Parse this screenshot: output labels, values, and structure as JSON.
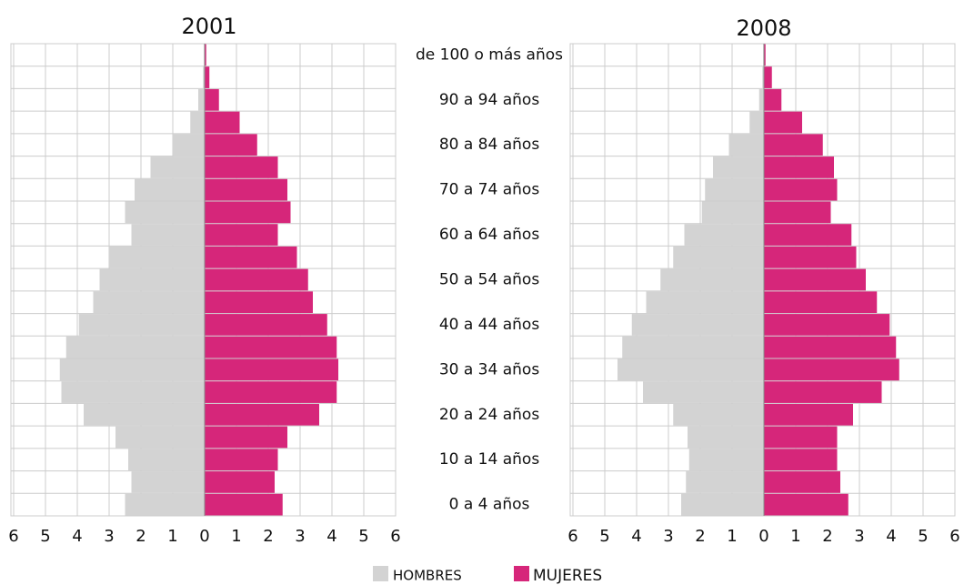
{
  "chart_data": [
    {
      "type": "pyramid",
      "title": "2001",
      "categories": [
        "0 a 4 años",
        null,
        "10 a 14 años",
        null,
        "20 a 24 años",
        null,
        "30 a 34 años",
        null,
        "40 a 44 años",
        null,
        "50 a 54 años",
        null,
        "60 a 64 años",
        null,
        "70 a 74 años",
        null,
        "80 a 84 años",
        null,
        "90 a 94 años",
        null,
        "de 100 o más años"
      ],
      "series": [
        {
          "name": "HOMBRES",
          "color": "#d3d3d3",
          "values": [
            2.5,
            2.3,
            2.4,
            2.8,
            3.8,
            4.5,
            4.55,
            4.35,
            3.95,
            3.5,
            3.3,
            3.0,
            2.3,
            2.5,
            2.2,
            1.7,
            1.0,
            0.45,
            0.2,
            0.05,
            0.02
          ]
        },
        {
          "name": "MUJERES",
          "color": "#d6267a",
          "values": [
            2.45,
            2.2,
            2.3,
            2.6,
            3.6,
            4.15,
            4.2,
            4.15,
            3.85,
            3.4,
            3.25,
            2.9,
            2.3,
            2.7,
            2.6,
            2.3,
            1.65,
            1.1,
            0.45,
            0.15,
            0.05
          ]
        }
      ],
      "xlim": [
        -6,
        6
      ],
      "xticks": [
        {
          "value": -6,
          "label": "6"
        },
        {
          "value": -5,
          "label": "5"
        },
        {
          "value": -4,
          "label": "4"
        },
        {
          "value": -3,
          "label": "3"
        },
        {
          "value": -2,
          "label": "2"
        },
        {
          "value": -1,
          "label": "1"
        },
        0,
        1,
        2,
        3,
        4,
        5,
        6
      ],
      "grid": true
    },
    {
      "type": "pyramid",
      "title": "2008",
      "series": [
        {
          "name": "HOMBRES",
          "color": "#d3d3d3",
          "values": [
            2.6,
            2.45,
            2.35,
            2.4,
            2.85,
            3.8,
            4.6,
            4.45,
            4.15,
            3.7,
            3.25,
            2.85,
            2.5,
            1.95,
            1.85,
            1.6,
            1.1,
            0.45,
            0.15,
            0.05,
            0.02
          ]
        },
        {
          "name": "MUJERES",
          "color": "#d6267a",
          "values": [
            2.65,
            2.4,
            2.3,
            2.3,
            2.8,
            3.7,
            4.25,
            4.15,
            3.95,
            3.55,
            3.2,
            2.9,
            2.75,
            2.1,
            2.3,
            2.2,
            1.85,
            1.2,
            0.55,
            0.25,
            0.05
          ]
        }
      ],
      "xlim": [
        -6,
        6
      ],
      "xticks": [
        {
          "value": -6,
          "label": "6"
        },
        {
          "value": -5,
          "label": "5"
        },
        {
          "value": -4,
          "label": "4"
        },
        {
          "value": -3,
          "label": "3"
        },
        {
          "value": -2,
          "label": "2"
        },
        {
          "value": -1,
          "label": "1"
        },
        0,
        1,
        2,
        3,
        4,
        5,
        6
      ],
      "grid": true
    }
  ]
}
